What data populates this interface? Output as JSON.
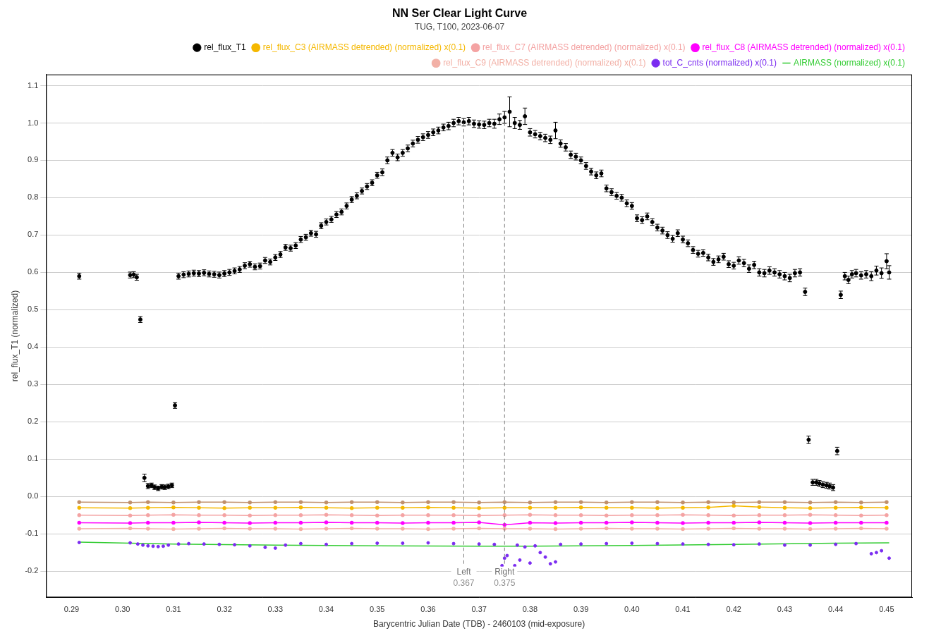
{
  "chart_data": {
    "type": "scatter",
    "title": "NN Ser Clear Light Curve",
    "subtitle": "TUG, T100, 2023-06-07",
    "x_label": "Barycentric Julian Date (TDB) - 2460103 (mid-exposure)",
    "y_label": "rel_flux_T1 (normalized)",
    "xlim": [
      0.285,
      0.455
    ],
    "xticks": [
      0.29,
      {
        "value": 0.3,
        "label": "0.30"
      },
      0.31,
      0.32,
      0.33,
      0.34,
      0.35,
      0.36,
      0.37,
      0.38,
      0.39,
      {
        "value": 0.4,
        "label": "0.40"
      },
      0.41,
      0.42,
      0.43,
      0.44,
      0.45
    ],
    "ylim": [
      -0.27,
      1.13
    ],
    "yticks": [
      -0.2,
      -0.1,
      {
        "value": 0,
        "label": "0.0"
      },
      0.1,
      0.2,
      0.3,
      0.4,
      0.5,
      0.6,
      0.7,
      0.8,
      0.9,
      {
        "value": 1,
        "label": "1.0"
      },
      1.1
    ],
    "grid": "y",
    "legend": "top right",
    "vlines": [
      {
        "name": "Left",
        "x": 0.367,
        "y": [
          -0.18,
          1.0
        ]
      },
      {
        "name": "Right",
        "x": 0.375,
        "y": [
          -0.18,
          1.0
        ]
      }
    ],
    "series": [
      {
        "name": "rel_flux_T1",
        "color": "#000000",
        "marker": "circle",
        "line_style": "none",
        "x": [
          0.2915,
          0.3015,
          0.3022,
          0.3028,
          0.3035,
          0.3043,
          0.305,
          0.3057,
          0.3063,
          0.307,
          0.3077,
          0.3083,
          0.309,
          0.3097,
          0.3103,
          0.311,
          0.312,
          0.313,
          0.314,
          0.315,
          0.316,
          0.317,
          0.318,
          0.319,
          0.32,
          0.321,
          0.322,
          0.323,
          0.324,
          0.325,
          0.326,
          0.327,
          0.328,
          0.329,
          0.33,
          0.331,
          0.332,
          0.333,
          0.334,
          0.335,
          0.336,
          0.337,
          0.338,
          0.339,
          0.34,
          0.341,
          0.342,
          0.343,
          0.344,
          0.345,
          0.346,
          0.347,
          0.348,
          0.349,
          0.35,
          0.351,
          0.352,
          0.353,
          0.354,
          0.355,
          0.356,
          0.357,
          0.358,
          0.359,
          0.36,
          0.361,
          0.362,
          0.363,
          0.364,
          0.365,
          0.366,
          0.367,
          0.368,
          0.369,
          0.37,
          0.371,
          0.372,
          0.373,
          0.374,
          0.375,
          0.376,
          0.377,
          0.378,
          0.379,
          0.38,
          0.381,
          0.382,
          0.383,
          0.384,
          0.385,
          0.386,
          0.387,
          0.388,
          0.389,
          0.39,
          0.391,
          0.392,
          0.393,
          0.394,
          0.395,
          0.396,
          0.397,
          0.398,
          0.399,
          0.4,
          0.401,
          0.402,
          0.403,
          0.404,
          0.405,
          0.406,
          0.407,
          0.408,
          0.409,
          0.41,
          0.411,
          0.412,
          0.413,
          0.414,
          0.415,
          0.416,
          0.417,
          0.418,
          0.419,
          0.42,
          0.421,
          0.422,
          0.423,
          0.424,
          0.425,
          0.426,
          0.427,
          0.428,
          0.429,
          0.43,
          0.431,
          0.432,
          0.433,
          0.434,
          0.4347,
          0.4355,
          0.4362,
          0.4368,
          0.4375,
          0.4382,
          0.4388,
          0.4395,
          0.4403,
          0.441,
          0.4418,
          0.4425,
          0.4432,
          0.444,
          0.445,
          0.446,
          0.447,
          0.448,
          0.449,
          0.45,
          0.4505
        ],
        "values": [
          0.59,
          0.593,
          0.594,
          0.587,
          0.474,
          0.05,
          0.028,
          0.03,
          0.025,
          0.022,
          0.026,
          0.025,
          0.027,
          0.03,
          0.244,
          0.59,
          0.594,
          0.596,
          0.598,
          0.597,
          0.599,
          0.596,
          0.595,
          0.593,
          0.597,
          0.6,
          0.604,
          0.608,
          0.618,
          0.622,
          0.615,
          0.617,
          0.632,
          0.628,
          0.64,
          0.648,
          0.667,
          0.665,
          0.672,
          0.688,
          0.694,
          0.705,
          0.702,
          0.725,
          0.735,
          0.742,
          0.755,
          0.762,
          0.778,
          0.795,
          0.805,
          0.818,
          0.83,
          0.84,
          0.86,
          0.868,
          0.9,
          0.92,
          0.908,
          0.92,
          0.932,
          0.945,
          0.955,
          0.962,
          0.968,
          0.975,
          0.98,
          0.988,
          0.992,
          1.0,
          1.005,
          1.002,
          1.005,
          0.998,
          0.996,
          0.995,
          1.0,
          0.998,
          1.01,
          1.015,
          1.03,
          1.0,
          0.995,
          1.018,
          0.975,
          0.97,
          0.965,
          0.96,
          0.955,
          0.98,
          0.945,
          0.935,
          0.915,
          0.91,
          0.9,
          0.885,
          0.87,
          0.86,
          0.865,
          0.825,
          0.815,
          0.805,
          0.8,
          0.785,
          0.778,
          0.745,
          0.74,
          0.75,
          0.735,
          0.72,
          0.712,
          0.7,
          0.69,
          0.705,
          0.688,
          0.678,
          0.66,
          0.65,
          0.652,
          0.64,
          0.628,
          0.635,
          0.642,
          0.622,
          0.618,
          0.632,
          0.625,
          0.61,
          0.62,
          0.6,
          0.598,
          0.605,
          0.6,
          0.595,
          0.59,
          0.585,
          0.598,
          0.6,
          0.548,
          0.152,
          0.038,
          0.038,
          0.035,
          0.032,
          0.03,
          0.028,
          0.024,
          0.122,
          0.54,
          0.59,
          0.58,
          0.595,
          0.598,
          0.592,
          0.595,
          0.59,
          0.605,
          0.598,
          0.63,
          0.6
        ],
        "errors": [
          0.008,
          0.008,
          0.008,
          0.008,
          0.008,
          0.01,
          0.007,
          0.006,
          0.006,
          0.006,
          0.006,
          0.006,
          0.006,
          0.006,
          0.008,
          0.008,
          0.008,
          0.008,
          0.008,
          0.008,
          0.008,
          0.008,
          0.008,
          0.008,
          0.008,
          0.008,
          0.008,
          0.008,
          0.008,
          0.008,
          0.008,
          0.008,
          0.008,
          0.008,
          0.008,
          0.008,
          0.008,
          0.008,
          0.008,
          0.008,
          0.008,
          0.008,
          0.008,
          0.008,
          0.008,
          0.008,
          0.008,
          0.008,
          0.008,
          0.008,
          0.008,
          0.008,
          0.008,
          0.008,
          0.008,
          0.009,
          0.009,
          0.009,
          0.009,
          0.009,
          0.009,
          0.009,
          0.009,
          0.009,
          0.009,
          0.009,
          0.009,
          0.009,
          0.01,
          0.01,
          0.01,
          0.01,
          0.01,
          0.01,
          0.01,
          0.01,
          0.01,
          0.012,
          0.014,
          0.016,
          0.04,
          0.015,
          0.012,
          0.022,
          0.01,
          0.01,
          0.01,
          0.01,
          0.01,
          0.022,
          0.01,
          0.01,
          0.01,
          0.009,
          0.009,
          0.009,
          0.009,
          0.009,
          0.009,
          0.009,
          0.009,
          0.009,
          0.009,
          0.009,
          0.009,
          0.009,
          0.009,
          0.009,
          0.009,
          0.009,
          0.009,
          0.009,
          0.009,
          0.009,
          0.009,
          0.009,
          0.009,
          0.009,
          0.009,
          0.009,
          0.009,
          0.009,
          0.009,
          0.009,
          0.009,
          0.01,
          0.01,
          0.01,
          0.01,
          0.01,
          0.01,
          0.01,
          0.01,
          0.01,
          0.01,
          0.01,
          0.01,
          0.01,
          0.01,
          0.01,
          0.008,
          0.008,
          0.008,
          0.008,
          0.008,
          0.008,
          0.008,
          0.01,
          0.01,
          0.01,
          0.01,
          0.01,
          0.01,
          0.01,
          0.01,
          0.012,
          0.012,
          0.014,
          0.02,
          0.018
        ]
      },
      {
        "name": null,
        "color": "#c0906c",
        "marker": "circle",
        "line_style": "solid",
        "x": [
          0.2915,
          0.3015,
          0.305,
          0.31,
          0.315,
          0.32,
          0.325,
          0.33,
          0.335,
          0.34,
          0.345,
          0.35,
          0.355,
          0.36,
          0.365,
          0.37,
          0.375,
          0.38,
          0.385,
          0.39,
          0.395,
          0.4,
          0.405,
          0.41,
          0.415,
          0.42,
          0.425,
          0.43,
          0.435,
          0.44,
          0.445,
          0.45
        ],
        "values": [
          -0.015,
          -0.016,
          -0.015,
          -0.016,
          -0.015,
          -0.015,
          -0.016,
          -0.015,
          -0.015,
          -0.016,
          -0.015,
          -0.015,
          -0.016,
          -0.015,
          -0.015,
          -0.016,
          -0.015,
          -0.016,
          -0.015,
          -0.015,
          -0.016,
          -0.015,
          -0.015,
          -0.016,
          -0.015,
          -0.016,
          -0.015,
          -0.015,
          -0.016,
          -0.015,
          -0.016,
          -0.015
        ]
      },
      {
        "name": "rel_flux_C3 (AIRMASS detrended) (normalized) x(0.1)",
        "color": "#f5b800",
        "marker": "circle",
        "line_style": "solid",
        "x": [
          0.2915,
          0.3015,
          0.305,
          0.31,
          0.315,
          0.32,
          0.325,
          0.33,
          0.335,
          0.34,
          0.345,
          0.35,
          0.355,
          0.36,
          0.365,
          0.37,
          0.375,
          0.38,
          0.385,
          0.39,
          0.395,
          0.4,
          0.405,
          0.41,
          0.415,
          0.42,
          0.425,
          0.43,
          0.435,
          0.44,
          0.445,
          0.45
        ],
        "values": [
          -0.03,
          -0.031,
          -0.03,
          -0.029,
          -0.03,
          -0.031,
          -0.03,
          -0.03,
          -0.029,
          -0.03,
          -0.031,
          -0.03,
          -0.03,
          -0.029,
          -0.03,
          -0.031,
          -0.03,
          -0.03,
          -0.03,
          -0.029,
          -0.03,
          -0.03,
          -0.031,
          -0.03,
          -0.029,
          -0.025,
          -0.028,
          -0.03,
          -0.031,
          -0.03,
          -0.029,
          -0.03
        ]
      },
      {
        "name": "rel_flux_C7 (AIRMASS detrended) (normalized) x(0.1)",
        "color": "#f4a3a3",
        "marker": "circle",
        "line_style": "solid",
        "x": [
          0.2915,
          0.3015,
          0.305,
          0.31,
          0.315,
          0.32,
          0.325,
          0.33,
          0.335,
          0.34,
          0.345,
          0.35,
          0.355,
          0.36,
          0.365,
          0.37,
          0.375,
          0.38,
          0.385,
          0.39,
          0.395,
          0.4,
          0.405,
          0.41,
          0.415,
          0.42,
          0.425,
          0.43,
          0.435,
          0.44,
          0.445,
          0.45
        ],
        "values": [
          -0.05,
          -0.051,
          -0.05,
          -0.049,
          -0.05,
          -0.05,
          -0.051,
          -0.05,
          -0.05,
          -0.049,
          -0.05,
          -0.051,
          -0.05,
          -0.05,
          -0.05,
          -0.051,
          -0.05,
          -0.049,
          -0.05,
          -0.05,
          -0.051,
          -0.05,
          -0.05,
          -0.049,
          -0.05,
          -0.051,
          -0.05,
          -0.05,
          -0.049,
          -0.05,
          -0.051,
          -0.05
        ]
      },
      {
        "name": "rel_flux_C8 (AIRMASS detrended) (normalized) x(0.1)",
        "color": "#ff00ff",
        "marker": "circle",
        "line_style": "solid",
        "x": [
          0.2915,
          0.3015,
          0.305,
          0.31,
          0.315,
          0.32,
          0.325,
          0.33,
          0.335,
          0.34,
          0.345,
          0.35,
          0.355,
          0.36,
          0.365,
          0.37,
          0.375,
          0.38,
          0.385,
          0.39,
          0.395,
          0.4,
          0.405,
          0.41,
          0.415,
          0.42,
          0.425,
          0.43,
          0.435,
          0.44,
          0.445,
          0.45
        ],
        "values": [
          -0.07,
          -0.071,
          -0.07,
          -0.07,
          -0.069,
          -0.07,
          -0.071,
          -0.07,
          -0.07,
          -0.069,
          -0.07,
          -0.07,
          -0.071,
          -0.07,
          -0.07,
          -0.069,
          -0.076,
          -0.07,
          -0.071,
          -0.07,
          -0.07,
          -0.069,
          -0.07,
          -0.071,
          -0.07,
          -0.07,
          -0.069,
          -0.07,
          -0.071,
          -0.07,
          -0.07,
          -0.07
        ]
      },
      {
        "name": "rel_flux_C9 (AIRMASS detrended) (normalized) x(0.1)",
        "color": "#f2b0a6",
        "marker": "circle",
        "line_style": "solid",
        "x": [
          0.2915,
          0.3015,
          0.305,
          0.31,
          0.315,
          0.32,
          0.325,
          0.33,
          0.335,
          0.34,
          0.345,
          0.35,
          0.355,
          0.36,
          0.365,
          0.37,
          0.375,
          0.38,
          0.385,
          0.39,
          0.395,
          0.4,
          0.405,
          0.41,
          0.415,
          0.42,
          0.425,
          0.43,
          0.435,
          0.44,
          0.445,
          0.45
        ],
        "values": [
          -0.086,
          -0.085,
          -0.086,
          -0.087,
          -0.086,
          -0.085,
          -0.086,
          -0.086,
          -0.087,
          -0.086,
          -0.085,
          -0.086,
          -0.086,
          -0.087,
          -0.086,
          -0.085,
          -0.086,
          -0.086,
          -0.087,
          -0.086,
          -0.085,
          -0.086,
          -0.086,
          -0.087,
          -0.086,
          -0.085,
          -0.086,
          -0.086,
          -0.087,
          -0.086,
          -0.085,
          -0.086
        ]
      },
      {
        "name": "tot_C_cnts (normalized) x(0.1)",
        "color": "#7b2cf0",
        "marker": "circle",
        "line_style": "none",
        "x": [
          0.2915,
          0.3015,
          0.303,
          0.304,
          0.305,
          0.306,
          0.307,
          0.308,
          0.309,
          0.311,
          0.313,
          0.316,
          0.319,
          0.322,
          0.325,
          0.328,
          0.33,
          0.332,
          0.335,
          0.34,
          0.345,
          0.35,
          0.355,
          0.36,
          0.365,
          0.37,
          0.373,
          0.3745,
          0.375,
          0.3755,
          0.376,
          0.377,
          0.3775,
          0.378,
          0.379,
          0.38,
          0.381,
          0.382,
          0.383,
          0.384,
          0.385,
          0.386,
          0.39,
          0.395,
          0.4,
          0.405,
          0.41,
          0.415,
          0.42,
          0.425,
          0.43,
          0.435,
          0.44,
          0.444,
          0.447,
          0.448,
          0.449,
          0.4505
        ],
        "values": [
          -0.123,
          -0.124,
          -0.127,
          -0.13,
          -0.132,
          -0.133,
          -0.134,
          -0.133,
          -0.13,
          -0.127,
          -0.126,
          -0.127,
          -0.128,
          -0.129,
          -0.132,
          -0.136,
          -0.138,
          -0.13,
          -0.126,
          -0.128,
          -0.126,
          -0.125,
          -0.125,
          -0.124,
          -0.126,
          -0.127,
          -0.128,
          -0.185,
          -0.165,
          -0.158,
          -0.203,
          -0.185,
          -0.13,
          -0.17,
          -0.135,
          -0.178,
          -0.132,
          -0.15,
          -0.162,
          -0.18,
          -0.175,
          -0.128,
          -0.127,
          -0.126,
          -0.125,
          -0.126,
          -0.127,
          -0.128,
          -0.129,
          -0.127,
          -0.13,
          -0.13,
          -0.128,
          -0.126,
          -0.153,
          -0.15,
          -0.145,
          -0.165
        ]
      },
      {
        "name": "AIRMASS (normalized) x(0.1)",
        "color": "#33cc33",
        "marker": "none",
        "line_style": "solid",
        "x": [
          0.2915,
          0.31,
          0.33,
          0.35,
          0.37,
          0.38,
          0.4,
          0.42,
          0.44,
          0.4505
        ],
        "values": [
          -0.122,
          -0.127,
          -0.13,
          -0.132,
          -0.133,
          -0.133,
          -0.131,
          -0.128,
          -0.125,
          -0.124
        ]
      }
    ]
  }
}
